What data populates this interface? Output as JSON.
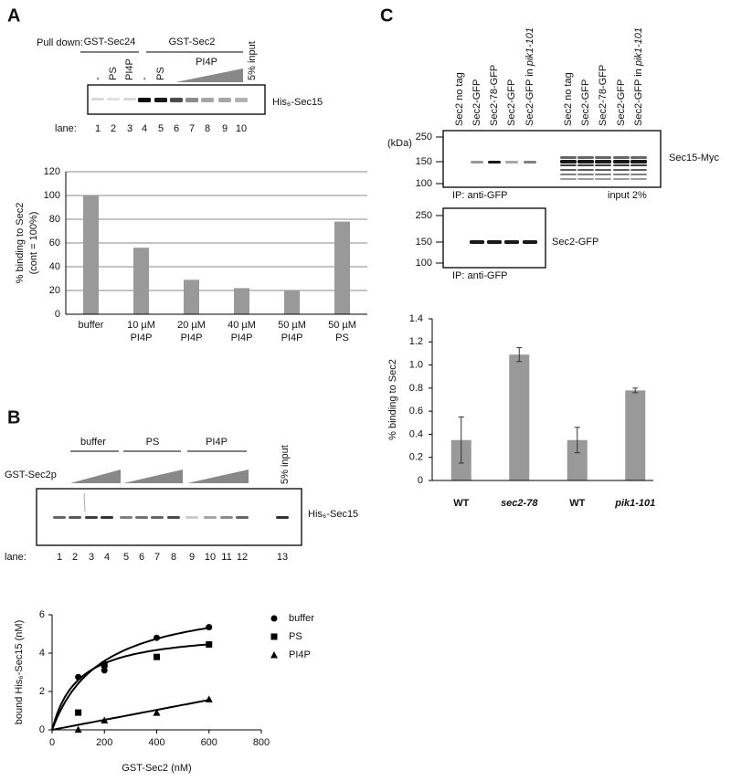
{
  "panels": [
    "A",
    "B",
    "C"
  ],
  "blot_a": {
    "pulldown": "Pull down:",
    "groups": [
      "GST-Sec24",
      "GST-Sec2"
    ],
    "lanes": [
      "-",
      "PS",
      "PI4P",
      "-",
      "PS"
    ],
    "wedge": "PI4P",
    "input": "5% input",
    "protein": "His₆-Sec15",
    "lane_label": "lane:",
    "lane_numbers": [
      "1",
      "2",
      "3",
      "4",
      "5",
      "6",
      "7",
      "8",
      "9",
      "10"
    ]
  },
  "blot_b": {
    "groups": [
      "buffer",
      "PS",
      "PI4P"
    ],
    "titrant": "GST-Sec2p",
    "input": "5% input",
    "protein": "His₆-Sec15",
    "lane_label": "lane:",
    "lane_numbers": [
      "1",
      "2",
      "3",
      "4",
      "5",
      "6",
      "7",
      "8",
      "9",
      "10",
      "11",
      "12",
      "13"
    ]
  },
  "blot_c": {
    "lanes": [
      [
        "Sec2 no tag"
      ],
      [
        "Sec2-GFP"
      ],
      [
        "Sec2-78-GFP"
      ],
      [
        "Sec2-GFP"
      ],
      [
        "Sec2-GFP in ",
        "pik1-101"
      ],
      [
        "Sec2 no tag"
      ],
      [
        "Sec2-GFP"
      ],
      [
        "Sec2-78-GFP"
      ],
      [
        "Sec2-GFP"
      ],
      [
        "Sec2-GFP in ",
        "pik1-101"
      ]
    ],
    "mw_unit": "(kDa)",
    "mw": [
      "250",
      "150",
      "100"
    ],
    "protein": "Sec15-Myc",
    "ip": "IP: anti-GFP",
    "input": "input 2%",
    "mw2": [
      "250",
      "150",
      "100"
    ],
    "protein2": "Sec2-GFP",
    "ip2": "IP: anti-GFP"
  },
  "chart_data": [
    {
      "type": "bar",
      "ylabel": [
        "% binding to Sec2",
        "(cont = 100%)"
      ],
      "categories": [
        [
          "buffer"
        ],
        [
          "10 µM",
          "PI4P"
        ],
        [
          "20 µM",
          "PI4P"
        ],
        [
          "40 µM",
          "PI4P"
        ],
        [
          "50 µM",
          "PI4P"
        ],
        [
          "50 µM",
          "PS"
        ]
      ],
      "values": [
        100,
        56,
        29,
        22,
        20,
        78
      ],
      "color": "#999999",
      "ylim": [
        0,
        120
      ],
      "yticks": [
        0,
        20,
        40,
        60,
        80,
        100,
        120
      ],
      "grid": true
    },
    {
      "type": "scatter",
      "xlabel": "GST-Sec2 (nM)",
      "ylabel": "bound His₆-Sec15 (nM)",
      "xlim": [
        0,
        800
      ],
      "xticks": [
        0,
        200,
        400,
        600,
        800
      ],
      "ylim": [
        0,
        6
      ],
      "yticks": [
        0,
        2,
        4,
        6
      ],
      "legend": "upper right",
      "color": "#000000",
      "series": [
        {
          "name": "buffer",
          "marker": "circle",
          "x": [
            100,
            200,
            400,
            600
          ],
          "values": [
            2.75,
            3.1,
            4.8,
            5.35
          ],
          "fit": {
            "model": "hyperbola",
            "bmax": 7.0,
            "kd": 190
          }
        },
        {
          "name": "PS",
          "marker": "square",
          "x": [
            100,
            200,
            400,
            600
          ],
          "values": [
            0.9,
            3.4,
            3.8,
            4.45
          ],
          "fit": {
            "model": "hyperbola",
            "bmax": 5.2,
            "kd": 100
          }
        },
        {
          "name": "PI4P",
          "marker": "triangle",
          "x": [
            100,
            200,
            400,
            600
          ],
          "values": [
            0.02,
            0.5,
            0.9,
            1.6
          ],
          "fit": {
            "model": "linear",
            "slope": 0.0026
          }
        }
      ]
    },
    {
      "type": "bar",
      "ylabel": "% binding to Sec2",
      "categories": [
        "WT",
        "sec2-78",
        "WT",
        "pik1-101"
      ],
      "italic": [
        false,
        true,
        false,
        true
      ],
      "values": [
        0.35,
        1.09,
        0.35,
        0.78
      ],
      "errors": [
        0.2,
        0.06,
        0.11,
        0.02
      ],
      "color": "#999999",
      "ylim": [
        0,
        1.4
      ],
      "yticks": [
        0,
        0.2,
        0.4,
        0.6,
        0.8,
        {
          "value": 1,
          "label": "1.0"
        },
        1.2,
        1.4
      ],
      "grid": false
    }
  ]
}
